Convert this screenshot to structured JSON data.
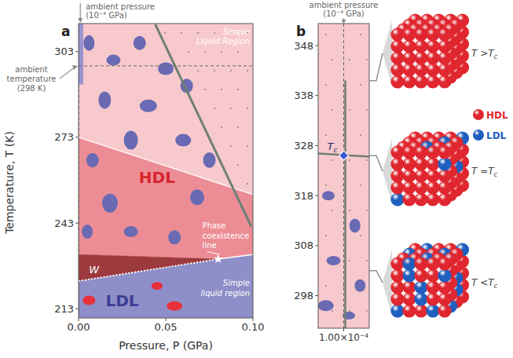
{
  "chart_data": [
    {
      "type": "phase_diagram",
      "title": "a",
      "xlabel": "Pressure, P (GPa)",
      "ylabel": "Temperature, T (K)",
      "xlim": [
        0,
        0.1
      ],
      "xticks": [
        {
          "value": 0,
          "label": "0.00"
        },
        {
          "value": 0.05,
          "label": "0.05"
        },
        {
          "value": 0.1,
          "label": "0.10"
        }
      ],
      "ylim": [
        209.8,
        312.8
      ],
      "yticks": [
        213,
        243,
        273,
        303
      ],
      "ambient_pressure": 0.0001,
      "ambient_temperature": 298,
      "simple_liquid_boundary": {
        "x": [
          0,
          0.1
        ],
        "y": [
          273,
          253
        ]
      },
      "widom_band_top": {
        "x": [
          0,
          0.08
        ],
        "y": [
          232,
          230.4
        ]
      },
      "coexistence_line": {
        "x": [
          0,
          0.08
        ],
        "y": [
          222.7,
          230.4
        ]
      },
      "coexistence_continuation": {
        "x": [
          0.08,
          0.1
        ],
        "y": [
          230.4,
          232
        ]
      },
      "gray_line": {
        "x": [
          0.044,
          0.099
        ],
        "y": [
          312.5,
          241.8
        ]
      },
      "critical_point": {
        "x": 0.08,
        "y": 230.4
      },
      "annotations": {
        "ambient_pressure": [
          "ambient pressure",
          "(10⁻⁴ GPa)"
        ],
        "ambient_temperature": [
          "ambient",
          "temperature",
          "(298 K)"
        ],
        "upper_region": [
          "Simple",
          "Liquid Region"
        ],
        "hdl": "HDL",
        "ldl": "LDL",
        "widom": "W",
        "coexistence": [
          "Phase",
          "coexistence",
          "line"
        ],
        "lower_region": [
          "Simple",
          "liquid region"
        ]
      }
    },
    {
      "type": "phase_diagram",
      "title": "b",
      "xlim": [
        9.95e-05,
        0.0001005
      ],
      "xticks": [
        {
          "value": 0.0001,
          "label": "1.00×10⁻⁴"
        }
      ],
      "ylim": [
        291.5,
        352.4
      ],
      "yticks": [
        298,
        308,
        318,
        328,
        338,
        348
      ],
      "ambient_pressure": 0.0001,
      "gray_vertical": {
        "x": [
          0.0001,
          0.0001
        ],
        "y": [
          341,
          291.5
        ]
      },
      "gray_horizontal": {
        "x": [
          9.95e-05,
          0.0001005
        ],
        "y": [
          326.4,
          325.8
        ]
      },
      "critical_point": {
        "x": 0.0001,
        "y": 326,
        "label": {
          "main": "T",
          "sub": "c"
        }
      },
      "annotations": {
        "ambient_pressure": [
          "ambient pressure",
          "(10⁻⁴ GPa)"
        ]
      },
      "states": [
        {
          "temperature": 341,
          "label": {
            "main": "T >T",
            "sub": "c"
          }
        },
        {
          "temperature": 326,
          "label": {
            "main": "T =T",
            "sub": "c"
          }
        },
        {
          "temperature": 303,
          "label": {
            "main": "T <T",
            "sub": "c"
          }
        }
      ],
      "legend_items": [
        {
          "name": "HDL",
          "color": "#e0262f"
        },
        {
          "name": "LDL",
          "color": "#1f5fbf"
        }
      ]
    }
  ]
}
